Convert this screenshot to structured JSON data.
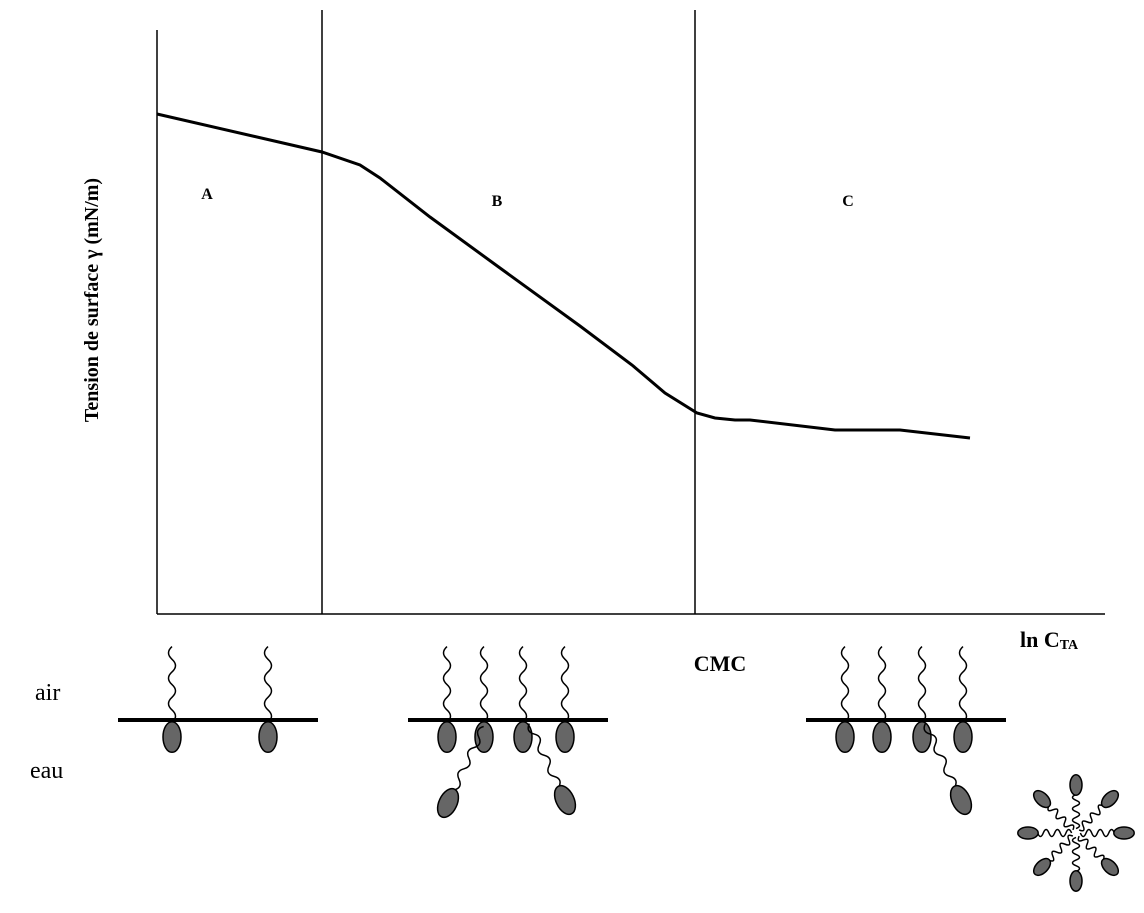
{
  "axis": {
    "y_label": "Tension de surface γ (mN/m)",
    "x_label": "ln C",
    "x_label_sub": "TA"
  },
  "regions": [
    "A",
    "B",
    "C"
  ],
  "cmc": "CMC",
  "phases": {
    "air": "air",
    "water": "eau"
  }
}
